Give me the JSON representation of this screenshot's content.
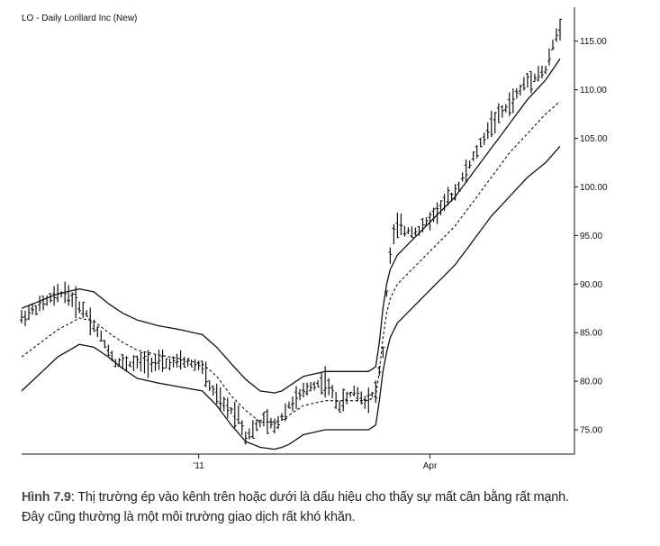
{
  "chart_data": {
    "type": "ohlc",
    "title": "LO - Daily Lorillard Inc (New)",
    "ylim": [
      72.5,
      118.5
    ],
    "y_ticks": [
      75,
      80,
      85,
      90,
      95,
      100,
      105,
      110,
      115
    ],
    "y_tick_labels": [
      "75.00",
      "80.00",
      "85.00",
      "90.00",
      "95.00",
      "100.00",
      "105.00",
      "110.00",
      "115.00"
    ],
    "x_ticks": [
      {
        "index": 49,
        "label": "'11"
      },
      {
        "index": 113,
        "label": "Apr"
      }
    ],
    "bars_count": 150,
    "series": [
      {
        "role": "price",
        "x": [
          0,
          8,
          12,
          18,
          22,
          26,
          30,
          35,
          40,
          45,
          50,
          52,
          56,
          60,
          62,
          64,
          67,
          70,
          74,
          80,
          84,
          88,
          92,
          95,
          98,
          100,
          101,
          102,
          103,
          104,
          106,
          110,
          115,
          120,
          125,
          130,
          135,
          140,
          145,
          147,
          149
        ],
        "y": [
          86.5,
          88.5,
          89.2,
          87.0,
          84.5,
          82.0,
          81.8,
          82.0,
          81.8,
          82.0,
          81.5,
          79.5,
          77.5,
          76.5,
          74.3,
          75.0,
          76.0,
          75.3,
          77.5,
          79.5,
          80.0,
          77.5,
          79.0,
          78.0,
          79.0,
          83.0,
          89.0,
          93.0,
          95.0,
          96.0,
          95.5,
          95.5,
          97.5,
          99.5,
          103.0,
          106.5,
          108.5,
          111.0,
          112.0,
          114.5,
          116.5
        ]
      },
      {
        "role": "upper-band",
        "x": [
          0,
          10,
          16,
          20,
          24,
          28,
          32,
          38,
          44,
          50,
          54,
          58,
          62,
          66,
          70,
          72,
          74,
          78,
          84,
          90,
          96,
          98,
          99,
          100,
          101,
          102,
          104,
          108,
          112,
          116,
          120,
          125,
          130,
          135,
          140,
          145,
          149
        ],
        "y": [
          87.5,
          89.0,
          89.5,
          89.2,
          88.0,
          87.0,
          86.3,
          85.7,
          85.3,
          84.8,
          83.5,
          81.8,
          80.2,
          79.0,
          78.8,
          79.0,
          79.5,
          80.5,
          81.0,
          81.0,
          81.0,
          81.5,
          84.0,
          87.5,
          90.0,
          91.5,
          93.0,
          94.5,
          96.0,
          97.5,
          99.0,
          101.5,
          104.0,
          106.5,
          109.0,
          111.0,
          113.2
        ]
      },
      {
        "role": "middle-band",
        "x": [
          0,
          10,
          16,
          20,
          24,
          28,
          32,
          38,
          44,
          50,
          54,
          58,
          62,
          66,
          70,
          72,
          74,
          78,
          84,
          90,
          96,
          98,
          99,
          100,
          101,
          102,
          104,
          108,
          112,
          116,
          120,
          125,
          130,
          135,
          140,
          145,
          149
        ],
        "y": [
          82.5,
          85.3,
          86.5,
          86.2,
          85.0,
          84.0,
          83.2,
          82.7,
          82.3,
          81.8,
          80.5,
          78.5,
          77.0,
          75.8,
          75.8,
          76.0,
          76.5,
          77.5,
          78.0,
          78.0,
          78.0,
          78.5,
          81.0,
          84.5,
          87.0,
          88.5,
          90.0,
          91.5,
          93.0,
          94.5,
          96.0,
          98.5,
          101.0,
          103.5,
          105.5,
          107.5,
          108.8
        ]
      },
      {
        "role": "lower-band",
        "x": [
          0,
          10,
          16,
          20,
          24,
          28,
          32,
          38,
          44,
          50,
          54,
          58,
          62,
          66,
          70,
          72,
          74,
          78,
          84,
          90,
          96,
          98,
          99,
          100,
          101,
          102,
          104,
          108,
          112,
          116,
          120,
          125,
          130,
          135,
          140,
          145,
          149
        ],
        "y": [
          79.0,
          82.5,
          83.8,
          83.5,
          82.5,
          81.3,
          80.3,
          79.8,
          79.4,
          79.0,
          77.5,
          75.5,
          73.8,
          73.2,
          73.0,
          73.2,
          73.5,
          74.5,
          75.0,
          75.0,
          75.0,
          75.5,
          78.0,
          81.0,
          83.0,
          84.5,
          86.0,
          87.5,
          89.0,
          90.5,
          92.0,
          94.5,
          97.0,
          99.0,
          101.0,
          102.5,
          104.2
        ]
      }
    ]
  },
  "caption": {
    "label": "Hình 7.9",
    "line1": ": Thị trường ép vào kênh trên hoặc dưới là dấu hiệu cho thấy sự mất cân bằng rất mạnh.",
    "line2": "Đây cũng thường là một môi trường giao dịch rất khó khăn."
  }
}
